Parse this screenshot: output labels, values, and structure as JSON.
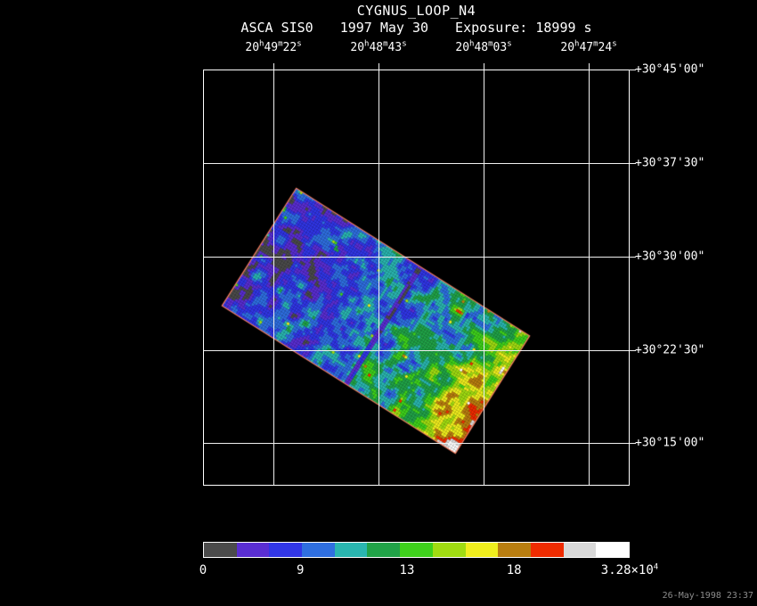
{
  "header": {
    "title": "CYGNUS_LOOP_N4",
    "instrument": "ASCA SIS0",
    "date": "1997 May 30",
    "exposure": "Exposure: 18999 s"
  },
  "axes": {
    "units": {
      "h": "h",
      "m": "m",
      "s": "s"
    },
    "ra_ticks": [
      {
        "h": "20",
        "m": "49",
        "s": "22"
      },
      {
        "h": "20",
        "m": "48",
        "s": "43"
      },
      {
        "h": "20",
        "m": "48",
        "s": "03"
      },
      {
        "h": "20",
        "m": "47",
        "s": "24"
      }
    ],
    "dec_ticks": [
      "+30°45'00\"",
      "+30°37'30\"",
      "+30°30'00\"",
      "+30°22'30\"",
      "+30°15'00\""
    ]
  },
  "colorbar": {
    "tick_labels": [
      "0",
      "9",
      "13",
      "18"
    ],
    "max_mantissa": "3.28×10",
    "max_exponent": "4",
    "colors": [
      "#4b4b4b",
      "#5a2ed2",
      "#3136e6",
      "#2f6fe0",
      "#2ab6b0",
      "#21a348",
      "#3fd11c",
      "#a0dc12",
      "#f0ee1e",
      "#b97e10",
      "#ef2b00",
      "#d9d9d9",
      "#ffffff"
    ]
  },
  "footer": {
    "timestamp": "26-May-1998 23:37"
  },
  "chart_data": {
    "type": "heatmap",
    "title": "CYGNUS_LOOP_N4",
    "instrument": "ASCA SIS0",
    "observation_date": "1997 May 30",
    "exposure_label": "Exposure: 18999 s",
    "x_axis": {
      "kind": "right ascension",
      "tick_labels": [
        "20h49m22s",
        "20h48m43s",
        "20h48m03s",
        "20h47m24s"
      ]
    },
    "y_axis": {
      "kind": "declination",
      "tick_labels": [
        "+30°45'00\"",
        "+30°37'30\"",
        "+30°30'00\"",
        "+30°22'30\"",
        "+30°15'00\""
      ]
    },
    "colorbar": {
      "scale_tick_values": [
        0,
        9,
        13,
        18
      ],
      "scale_max_label": "3.28×10⁴",
      "scale_max_value": 32800
    },
    "image": {
      "shape": "rectangular detector footprint rotated ~32 degrees",
      "low_region": "northwest half: dark blue/purple speckle with sparse green spots",
      "mid_region": "southeast half: teal/green speckle",
      "peak_region": "southeast corner: red/orange/yellow intensity maximum"
    }
  }
}
